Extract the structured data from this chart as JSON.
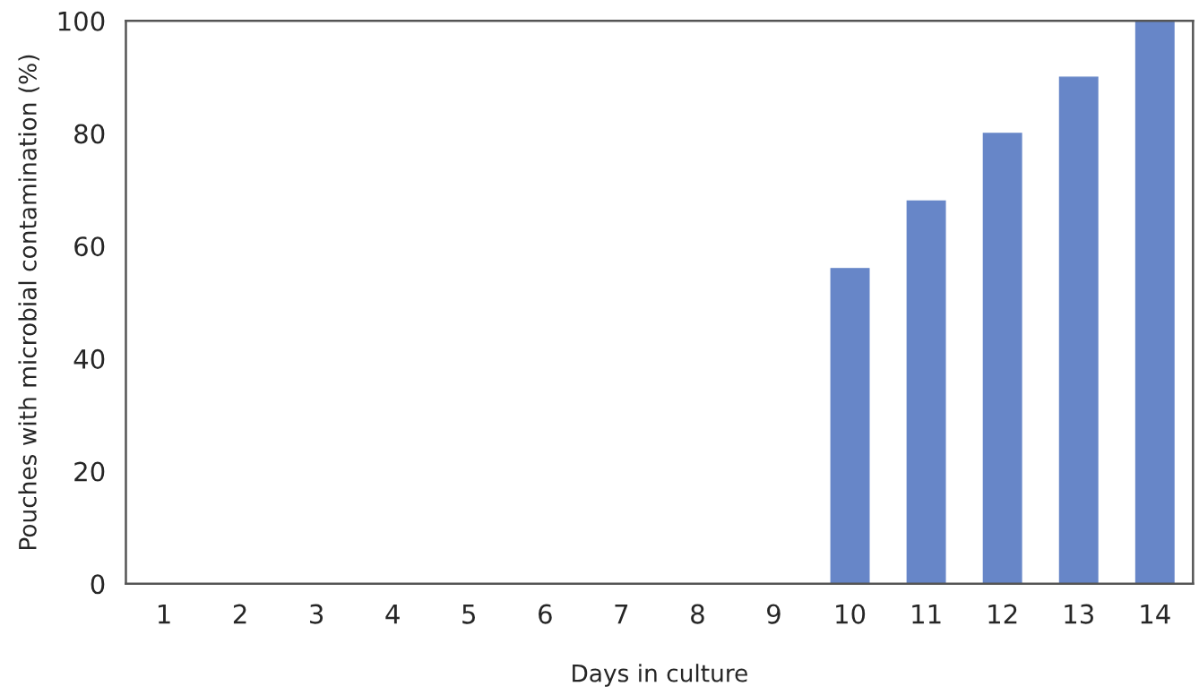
{
  "chart_data": {
    "type": "bar",
    "xlabel": "Days in culture",
    "ylabel": "Pouches with microbial contamination (%)",
    "categories": [
      "1",
      "2",
      "3",
      "4",
      "5",
      "6",
      "7",
      "8",
      "9",
      "10",
      "11",
      "12",
      "13",
      "14"
    ],
    "series": [
      {
        "color": "#6786c8",
        "values": [
          0,
          0,
          0,
          0,
          0,
          0,
          0,
          0,
          0,
          56,
          68,
          80,
          90,
          100
        ]
      }
    ],
    "ylim": [
      0,
      100
    ],
    "yticks": [
      0,
      20,
      40,
      60,
      80,
      100
    ],
    "grid": false
  }
}
